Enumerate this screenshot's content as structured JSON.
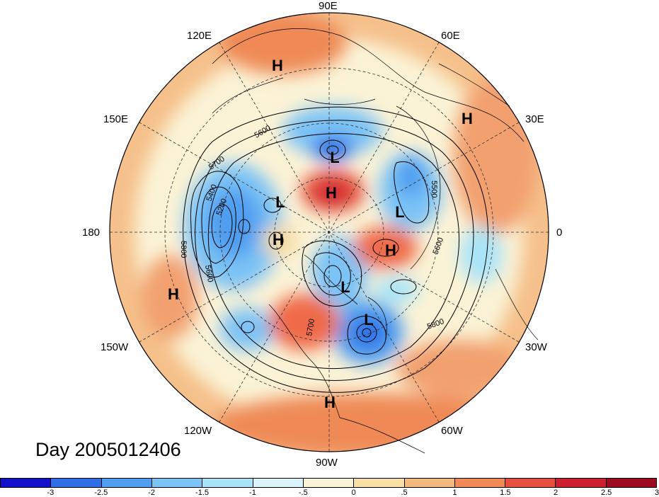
{
  "title": "Day 2005012406",
  "longitude_labels": [
    "90E",
    "60E",
    "30E",
    "0",
    "30W",
    "60W",
    "90W",
    "120W",
    "150W",
    "180",
    "150E",
    "120E"
  ],
  "pressure_centers": [
    {
      "label": "H"
    },
    {
      "label": "H"
    },
    {
      "label": "L"
    },
    {
      "label": "H"
    },
    {
      "label": "L"
    },
    {
      "label": "L"
    },
    {
      "label": "H"
    },
    {
      "label": "H"
    },
    {
      "label": "L"
    },
    {
      "label": "H"
    },
    {
      "label": "L"
    },
    {
      "label": "H"
    }
  ],
  "contour_labels": [
    "5600",
    "5700",
    "5200",
    "5800",
    "5600",
    "5500",
    "5800",
    "5700",
    "5600",
    "5400"
  ],
  "colorbar": {
    "colors": [
      "#1111cc",
      "#2f6fe6",
      "#4f9ef0",
      "#7cc3f6",
      "#a8e4f8",
      "#d9f4fb",
      "#fbf3d6",
      "#f8e0a6",
      "#f5b97d",
      "#ef8a56",
      "#e5503c",
      "#cc2030",
      "#9e0a1e"
    ],
    "ticks": [
      "-3",
      "-2.5",
      "-2",
      "-1.5",
      "-1",
      "-.5",
      "0",
      ".5",
      "1",
      "1.5",
      "2",
      "2.5",
      "3"
    ]
  },
  "colors": {
    "warm": "#f2a070",
    "cool": "#4f9ef0",
    "neutral": "#fbf3d6"
  }
}
